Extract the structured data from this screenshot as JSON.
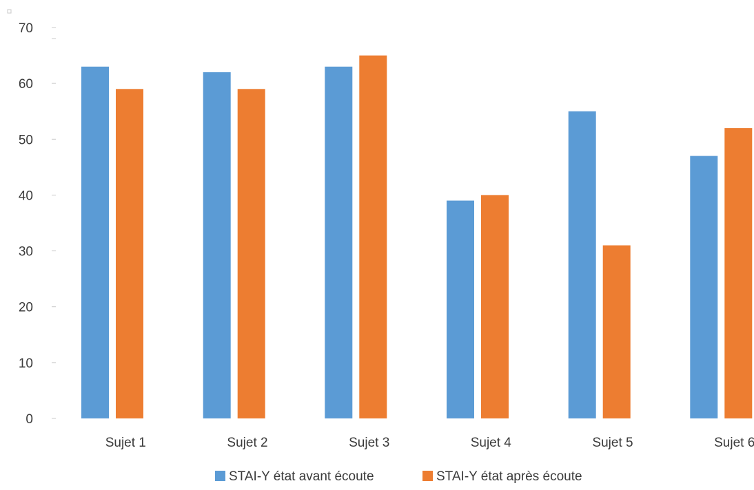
{
  "chart_data": {
    "type": "bar",
    "title": "",
    "xlabel": "",
    "ylabel": "",
    "categories": [
      "Sujet 1",
      "Sujet 2",
      "Sujet 3",
      "Sujet 4",
      "Sujet 5",
      "Sujet 6"
    ],
    "series": [
      {
        "name": "STAI-Y état avant écoute",
        "color": "#5b9bd5",
        "values": [
          63,
          62,
          63,
          39,
          55,
          47
        ]
      },
      {
        "name": "STAI-Y état après écoute",
        "color": "#ed7d31",
        "values": [
          59,
          59,
          65,
          40,
          31,
          52
        ]
      }
    ],
    "ylim": [
      0,
      70
    ],
    "yticks": [
      0,
      10,
      20,
      30,
      40,
      50,
      60,
      70
    ],
    "grid": false,
    "legend_position": "bottom"
  }
}
